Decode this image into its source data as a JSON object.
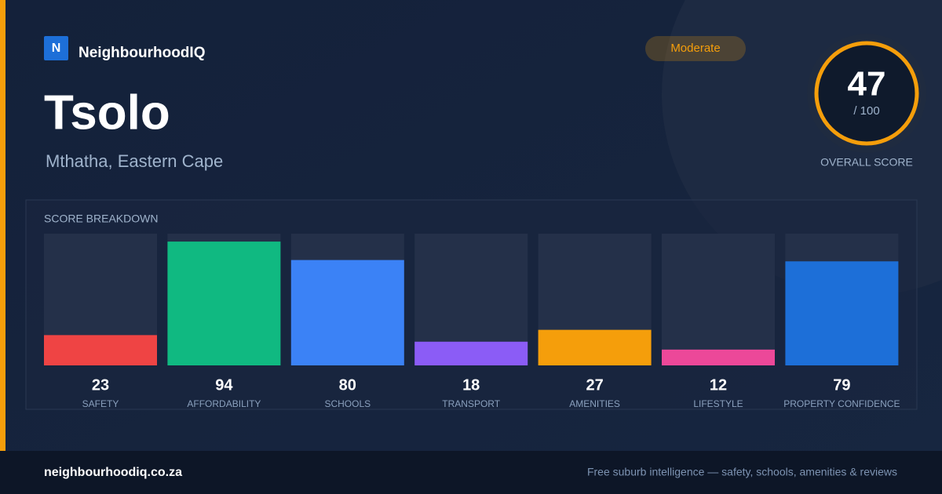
{
  "header": {
    "logo_letter": "N",
    "brand": "NeighbourhoodIQ",
    "badge": "Moderate"
  },
  "place": {
    "name": "Tsolo",
    "region": "Mthatha, Eastern Cape"
  },
  "score": {
    "value": 47,
    "out_of": "/ 100",
    "label": "OVERALL SCORE"
  },
  "chart_data": {
    "type": "bar",
    "title": "SCORE BREAKDOWN",
    "categories": [
      "SAFETY",
      "AFFORDABILITY",
      "SCHOOLS",
      "TRANSPORT",
      "AMENITIES",
      "LIFESTYLE",
      "PROPERTY CONFIDENCE"
    ],
    "values": [
      23,
      94,
      80,
      18,
      27,
      12,
      79
    ],
    "colors": [
      "#ef4444",
      "#10b981",
      "#3b82f6",
      "#8b5cf6",
      "#f59e0b",
      "#ec4899",
      "#1d6fd8"
    ],
    "ylim": [
      0,
      100
    ]
  },
  "footer": {
    "site": "neighbourhoodiq.co.za",
    "tagline": "Free suburb intelligence — safety, schools, amenities & reviews"
  }
}
